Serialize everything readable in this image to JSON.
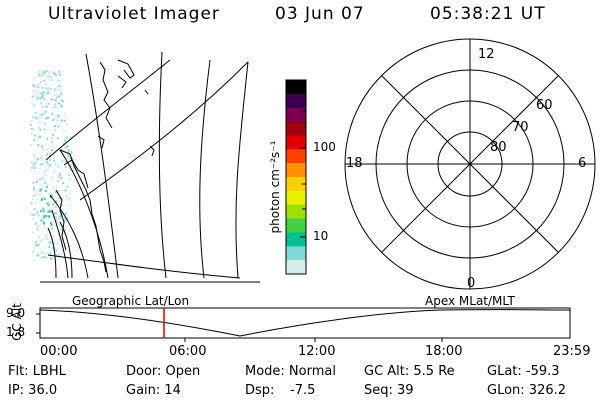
{
  "header": {
    "instrument": "Ultraviolet Imager",
    "date": "03 Jun 07",
    "time": "05:38:21 UT"
  },
  "colorbar": {
    "unit_label": "photon cm⁻²s⁻¹",
    "ticks": [
      "100",
      "10"
    ],
    "colors": [
      "#000000",
      "#3a0050",
      "#7a0050",
      "#a00010",
      "#e00000",
      "#ff4000",
      "#ff9000",
      "#ffd000",
      "#e8f000",
      "#a0e000",
      "#40d040",
      "#00c090",
      "#80d8d8",
      "#d8ecec"
    ]
  },
  "polar_plot": {
    "mlt_labels": {
      "top": "12",
      "left": "18",
      "right": "6",
      "bottom": "0"
    },
    "lat_labels": [
      "60",
      "70",
      "80"
    ]
  },
  "map_panel": {
    "caption": "Geographic Lat/Lon"
  },
  "timeline": {
    "axis_label": "GC Alt",
    "right_caption": "Apex MLat/MLT",
    "y_ticks": [
      "9.0",
      "1.8"
    ],
    "x_ticks": [
      "00:00",
      "06:00",
      "12:00",
      "18:00",
      "23:59"
    ],
    "current_time_fraction": 0.234,
    "marker_color": "#e00000"
  },
  "info": {
    "filter": "Flt: LBHL",
    "ip": "IP: 36.0",
    "door": "Door: Open",
    "gain": "Gain: 14",
    "mode": "Mode: Normal",
    "dsp_label": "Dsp:",
    "dsp_value": "-7.5",
    "gc_alt": "GC Alt: 5.5 Re",
    "seq": "Seq: 39",
    "glat": "GLat: -59.3",
    "glon": "GLon: 326.2"
  }
}
